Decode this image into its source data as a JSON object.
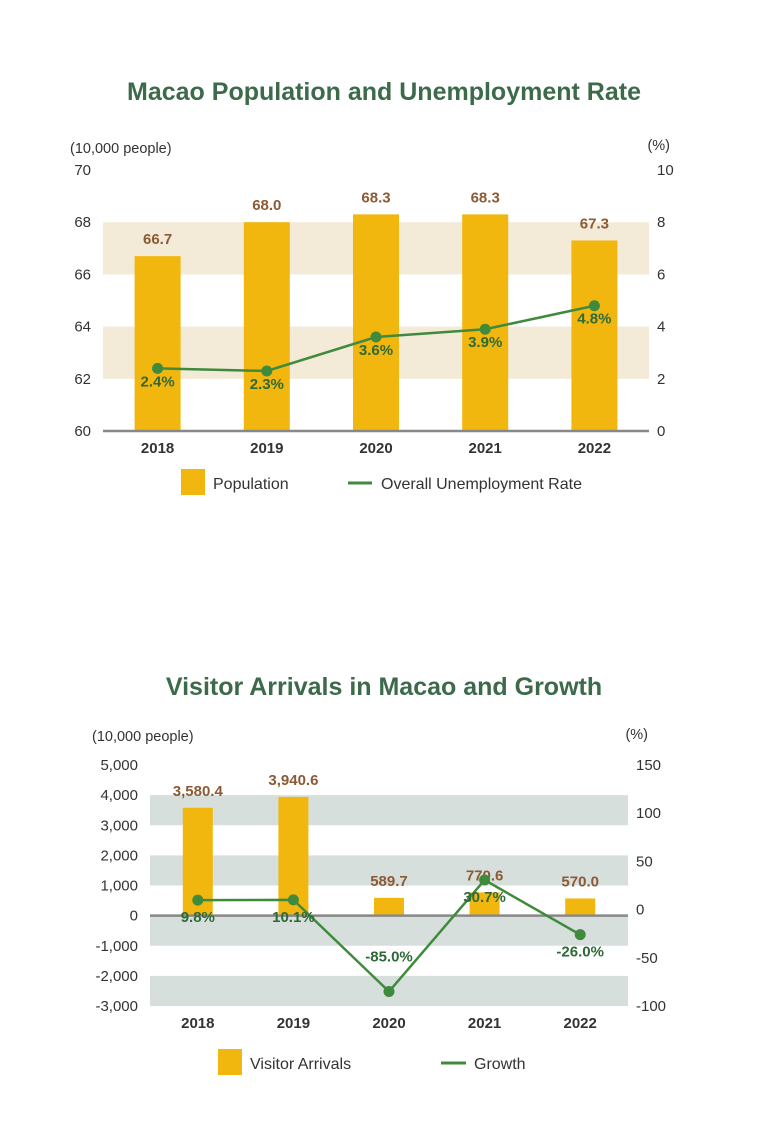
{
  "colors": {
    "bar": "#f2b70e",
    "line": "#3f8a3c",
    "line_label": "#2d6a35",
    "bar_label": "#8c5a34",
    "title": "#3c6a4b",
    "band1": "#f3ead7",
    "band2": "#d6dfdb",
    "axis": "#888888"
  },
  "chart_data": [
    {
      "type": "bar",
      "title": "Macao Population and Unemployment Rate",
      "y_left_label": "(10,000 people)",
      "y_right_label": "(%)",
      "categories": [
        "2018",
        "2019",
        "2020",
        "2021",
        "2022"
      ],
      "ylim_left": [
        60,
        70
      ],
      "ylim_right": [
        0,
        10
      ],
      "left_ticks": [
        "60",
        "62",
        "64",
        "66",
        "68",
        "70"
      ],
      "right_ticks": [
        "0",
        "2",
        "4",
        "6",
        "8",
        "10"
      ],
      "series": [
        {
          "name": "Population",
          "type": "bar",
          "axis": "left",
          "values": [
            66.7,
            68.0,
            68.3,
            68.3,
            67.3
          ],
          "labels": [
            "66.7",
            "68.0",
            "68.3",
            "68.3",
            "67.3"
          ]
        },
        {
          "name": "Overall Unemployment Rate",
          "type": "line",
          "axis": "right",
          "values": [
            2.4,
            2.3,
            3.6,
            3.9,
            4.8
          ],
          "labels": [
            "2.4%",
            "2.3%",
            "3.6%",
            "3.9%",
            "4.8%"
          ]
        }
      ],
      "legend": [
        "Population",
        "Overall Unemployment Rate"
      ],
      "legend_position": "bottom",
      "grid": "alternating bands"
    },
    {
      "type": "bar",
      "title": "Visitor Arrivals in Macao and Growth",
      "y_left_label": "(10,000 people)",
      "y_right_label": "(%)",
      "categories": [
        "2018",
        "2019",
        "2020",
        "2021",
        "2022"
      ],
      "ylim_left": [
        -3000,
        5000
      ],
      "ylim_right": [
        -100,
        150
      ],
      "left_ticks": [
        "-3,000",
        "-2,000",
        "-1,000",
        "0",
        "1,000",
        "2,000",
        "3,000",
        "4,000",
        "5,000"
      ],
      "right_ticks": [
        "-100",
        "-50",
        "0",
        "50",
        "100",
        "150"
      ],
      "series": [
        {
          "name": "Visitor Arrivals",
          "type": "bar",
          "axis": "left",
          "values": [
            3580.4,
            3940.6,
            589.7,
            770.6,
            570.0
          ],
          "labels": [
            "3,580.4",
            "3,940.6",
            "589.7",
            "770.6",
            "570.0"
          ]
        },
        {
          "name": "Growth",
          "type": "line",
          "axis": "right",
          "values": [
            9.8,
            10.1,
            -85.0,
            30.7,
            -26.0
          ],
          "labels": [
            "9.8%",
            "10.1%",
            "-85.0%",
            "30.7%",
            "-26.0%"
          ]
        }
      ],
      "legend": [
        "Visitor Arrivals",
        "Growth"
      ],
      "legend_position": "bottom",
      "grid": "alternating bands"
    }
  ]
}
